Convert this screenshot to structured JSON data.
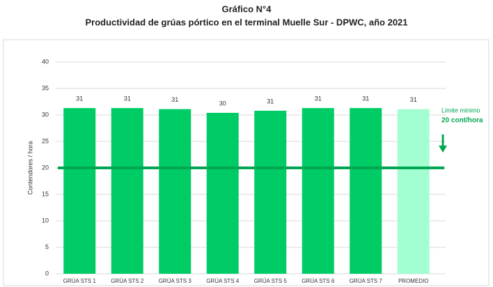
{
  "chart_data": {
    "type": "bar",
    "title": "Gráfico N°4",
    "subtitle": "Productividad  de grúas pórtico en el terminal Muelle Sur - DPWC, año 2021",
    "y_label": "Contendores  / hora",
    "categories": [
      "GRÚA STS 1",
      "GRÚA STS 2",
      "GRÚA STS 3",
      "GRÚA STS 4",
      "GRÚA STS 5",
      "GRÚA STS 6",
      "GRÚA STS 7",
      "PROMEDIO"
    ],
    "values": [
      31.3,
      31.3,
      31.1,
      30.4,
      30.8,
      31.3,
      31.3,
      31.1
    ],
    "value_labels": [
      "31",
      "31",
      "31",
      "30",
      "31",
      "31",
      "31",
      "31"
    ],
    "colors": [
      "#00cc66",
      "#00cc66",
      "#00cc66",
      "#00cc66",
      "#00cc66",
      "#00cc66",
      "#00cc66",
      "#a3ffd1"
    ],
    "ylim": [
      0,
      40
    ],
    "yticks": [
      0,
      5,
      10,
      15,
      20,
      25,
      30,
      35,
      40
    ],
    "grid": true,
    "threshold": 20,
    "threshold_color": "#00a651",
    "threshold_label": "Limite minimo",
    "threshold_value_label": "20 cont/hora"
  }
}
